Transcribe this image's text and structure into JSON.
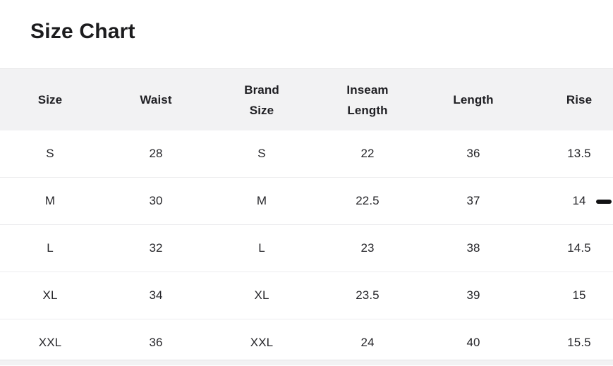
{
  "page": {
    "title": "Size Chart"
  },
  "table": {
    "columns": [
      {
        "key": "size",
        "label": "Size"
      },
      {
        "key": "waist",
        "label": "Waist"
      },
      {
        "key": "brand-size",
        "label": "Brand\nSize"
      },
      {
        "key": "inseam-length",
        "label": "Inseam\nLength"
      },
      {
        "key": "length",
        "label": "Length"
      },
      {
        "key": "rise",
        "label": "Rise"
      }
    ],
    "rows": [
      {
        "size": "S",
        "waist": "28",
        "brand-size": "S",
        "inseam-length": "22",
        "length": "36",
        "rise": "13.5"
      },
      {
        "size": "M",
        "waist": "30",
        "brand-size": "M",
        "inseam-length": "22.5",
        "length": "37",
        "rise": "14"
      },
      {
        "size": "L",
        "waist": "32",
        "brand-size": "L",
        "inseam-length": "23",
        "length": "38",
        "rise": "14.5"
      },
      {
        "size": "XL",
        "waist": "34",
        "brand-size": "XL",
        "inseam-length": "23.5",
        "length": "39",
        "rise": "15"
      },
      {
        "size": "XXL",
        "waist": "36",
        "brand-size": "XXL",
        "inseam-length": "24",
        "length": "40",
        "rise": "15.5"
      }
    ],
    "annotation": {
      "symbol": "dash",
      "row": "M",
      "column": "rise"
    }
  },
  "colors": {
    "header_background": "#f2f2f3",
    "row_divider": "#ececee",
    "text": "#26262a",
    "title": "#1c1c1e",
    "dash_marker": "#121214"
  }
}
